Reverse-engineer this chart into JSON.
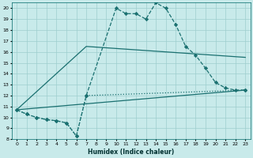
{
  "xlabel": "Humidex (Indice chaleur)",
  "bg_color": "#c8eaea",
  "grid_color": "#9ecece",
  "line_color": "#1a7070",
  "xlim": [
    -0.5,
    23.5
  ],
  "ylim": [
    8,
    20.5
  ],
  "yticks": [
    8,
    9,
    10,
    11,
    12,
    13,
    14,
    15,
    16,
    17,
    18,
    19,
    20
  ],
  "xticks": [
    0,
    1,
    2,
    3,
    4,
    5,
    6,
    7,
    8,
    9,
    10,
    11,
    12,
    13,
    14,
    15,
    16,
    17,
    18,
    19,
    20,
    21,
    22,
    23
  ],
  "curve1_x": [
    0,
    1,
    2,
    3,
    4,
    5,
    6,
    7,
    10,
    11,
    12,
    13,
    14,
    15,
    16,
    17,
    18,
    19,
    20,
    21,
    22,
    23
  ],
  "curve1_y": [
    10.7,
    10.3,
    10.0,
    9.8,
    9.7,
    9.5,
    8.3,
    12.0,
    20.0,
    19.5,
    19.5,
    19.0,
    20.5,
    20.0,
    18.5,
    16.5,
    15.7,
    14.5,
    13.2,
    12.7,
    12.5,
    12.5
  ],
  "curve2_x": [
    0,
    1,
    2,
    3,
    4,
    5,
    6,
    7,
    23
  ],
  "curve2_y": [
    10.7,
    10.3,
    10.0,
    9.8,
    9.7,
    9.5,
    8.3,
    12.0,
    12.5
  ],
  "curve3_x": [
    0,
    7,
    23
  ],
  "curve3_y": [
    10.7,
    16.5,
    15.5
  ],
  "curve4_x": [
    0,
    23
  ],
  "curve4_y": [
    10.7,
    12.5
  ]
}
